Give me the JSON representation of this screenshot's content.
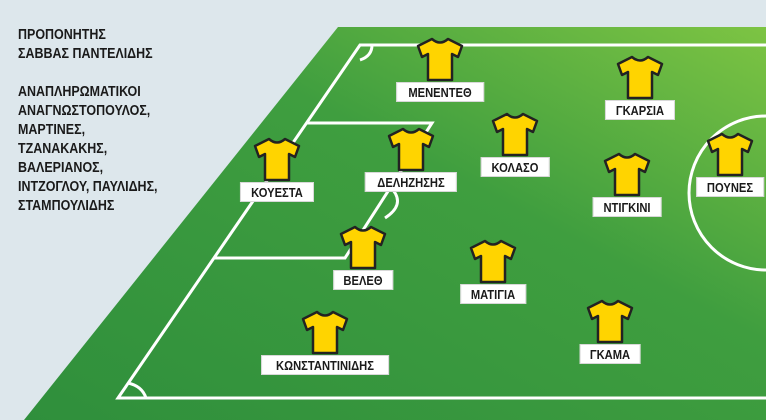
{
  "coach": {
    "title": "ΠΡΟΠΟΝΗΤΗΣ",
    "name": "ΣΑΒΒΑΣ ΠΑΝΤΕΛΙΔΗΣ"
  },
  "substitutes": {
    "title": "ΑΝΑΠΛΗΡΩΜΑΤΙΚΟΙ",
    "lines": [
      "ΑΝΑΓΝΩΣΤΟΠΟΥΛΟΣ,",
      "ΜΑΡΤΙΝΕΣ,",
      "ΤΖΑΝΑΚΑΚΗΣ,",
      "ΒΑΛΕΡΙΑΝΟΣ,",
      "ΙΝΤΖΟΓΛΟΥ, ΠΑΥΛΙΔΗΣ,",
      "ΣΤΑΜΠΟΥΛΙΔΗΣ"
    ]
  },
  "colors": {
    "shirt": "#ffd400",
    "shirt_outline": "#222222",
    "pitch_dark": "#2f8f3c",
    "pitch_light": "#7dc443",
    "background": "#dde7ec"
  },
  "players": [
    {
      "name": "ΜΕΝΕΝΤΕΘ"
    },
    {
      "name": "ΓΚΑΡΣΙΑ"
    },
    {
      "name": "ΚΟΛΑΣΟ"
    },
    {
      "name": "ΚΟΥΕΣΤΑ"
    },
    {
      "name": "ΔΕΛΗΖΗΣΗΣ"
    },
    {
      "name": "ΝΤΙΓΚΙΝΙ"
    },
    {
      "name": "ΠΟΥΝΕΣ"
    },
    {
      "name": "ΒΕΛΕΘ"
    },
    {
      "name": "ΜΑΤΙΓΙΑ"
    },
    {
      "name": "ΚΩΝΣΤΑΝΤΙΝΙΔΗΣ"
    },
    {
      "name": "ΓΚΑΜΑ"
    }
  ]
}
